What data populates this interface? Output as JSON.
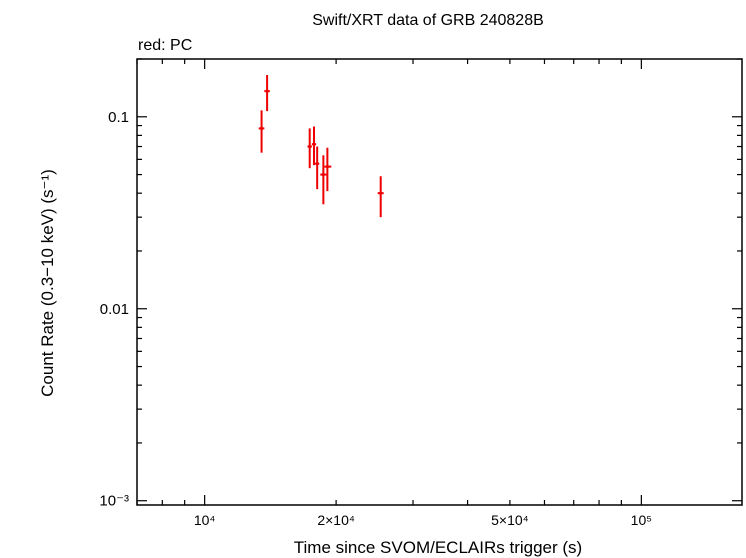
{
  "chart_data": {
    "type": "scatter",
    "title": "Swift/XRT data of GRB 240828B",
    "subtitle": "red: PC",
    "xlabel": "Time since SVOM/ECLAIRs trigger (s)",
    "ylabel": "Count Rate (0.3−10 keV) (s⁻¹)",
    "x_scale": "log",
    "y_scale": "log",
    "xlim": [
      7000,
      170000
    ],
    "ylim": [
      0.00095,
      0.2
    ],
    "x_ticks": [
      {
        "value": 10000,
        "label": "10⁴"
      },
      {
        "value": 20000,
        "label": "2×10⁴"
      },
      {
        "value": 50000,
        "label": "5×10⁴"
      },
      {
        "value": 100000,
        "label": "10⁵"
      }
    ],
    "y_ticks": [
      {
        "value": 0.1,
        "label": "0.1"
      },
      {
        "value": 0.01,
        "label": "0.01"
      },
      {
        "value": 0.001,
        "label": "10⁻³"
      }
    ],
    "grid": false,
    "series": [
      {
        "name": "PC",
        "color": "#ee0000",
        "points": [
          {
            "x": 13500,
            "xerr": [
              13300,
              13700
            ],
            "y": 0.087,
            "yerr": [
              0.065,
              0.108
            ]
          },
          {
            "x": 13900,
            "xerr": [
              13700,
              14100
            ],
            "y": 0.136,
            "yerr": [
              0.107,
              0.165
            ]
          },
          {
            "x": 17400,
            "xerr": [
              17200,
              17600
            ],
            "y": 0.07,
            "yerr": [
              0.054,
              0.087
            ]
          },
          {
            "x": 17800,
            "xerr": [
              17600,
              18000
            ],
            "y": 0.072,
            "yerr": [
              0.056,
              0.089
            ]
          },
          {
            "x": 18100,
            "xerr": [
              17900,
              18300
            ],
            "y": 0.057,
            "yerr": [
              0.042,
              0.07
            ]
          },
          {
            "x": 18700,
            "xerr": [
              18400,
              19000
            ],
            "y": 0.05,
            "yerr": [
              0.035,
              0.063
            ]
          },
          {
            "x": 19100,
            "xerr": [
              18800,
              19500
            ],
            "y": 0.055,
            "yerr": [
              0.041,
              0.069
            ]
          },
          {
            "x": 25300,
            "xerr": [
              24900,
              25700
            ],
            "y": 0.04,
            "yerr": [
              0.03,
              0.049
            ]
          }
        ]
      }
    ]
  }
}
